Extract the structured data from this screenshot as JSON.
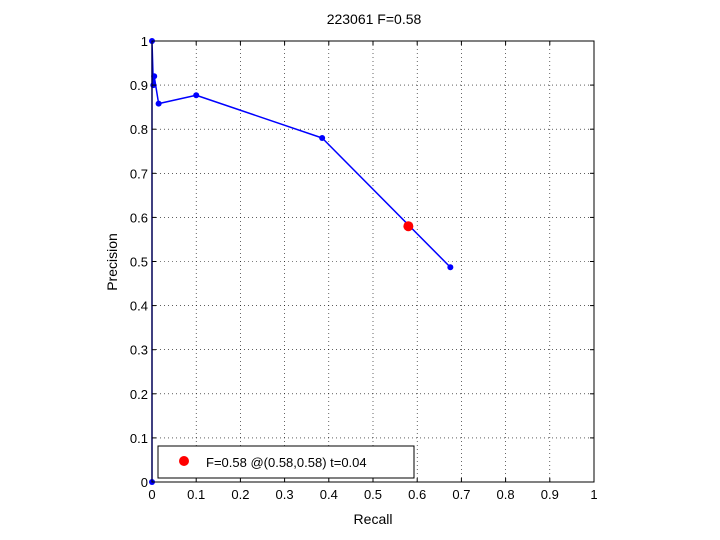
{
  "chart_data": {
    "type": "line",
    "title": "223061 F=0.58",
    "xlabel": "Recall",
    "ylabel": "Precision",
    "xlim": [
      0,
      1
    ],
    "ylim": [
      0,
      1
    ],
    "xticks": [
      "0",
      "0.1",
      "0.2",
      "0.3",
      "0.4",
      "0.5",
      "0.6",
      "0.7",
      "0.8",
      "0.9",
      "1"
    ],
    "yticks": [
      "0",
      "0.1",
      "0.2",
      "0.3",
      "0.4",
      "0.5",
      "0.6",
      "0.7",
      "0.8",
      "0.9",
      "1"
    ],
    "grid": true,
    "legend_position": "bottom-left",
    "series": [
      {
        "color": "#0000ff",
        "x": [
          0.0,
          0.0,
          0.003,
          0.005,
          0.015,
          0.1,
          0.385,
          0.675
        ],
        "y": [
          0.0,
          1.0,
          0.9,
          0.92,
          0.858,
          0.877,
          0.78,
          0.487
        ]
      }
    ],
    "highlight": {
      "x": 0.58,
      "y": 0.58,
      "color": "#ff0000",
      "label": "F=0.58 @(0.58,0.58) t=0.04"
    }
  }
}
